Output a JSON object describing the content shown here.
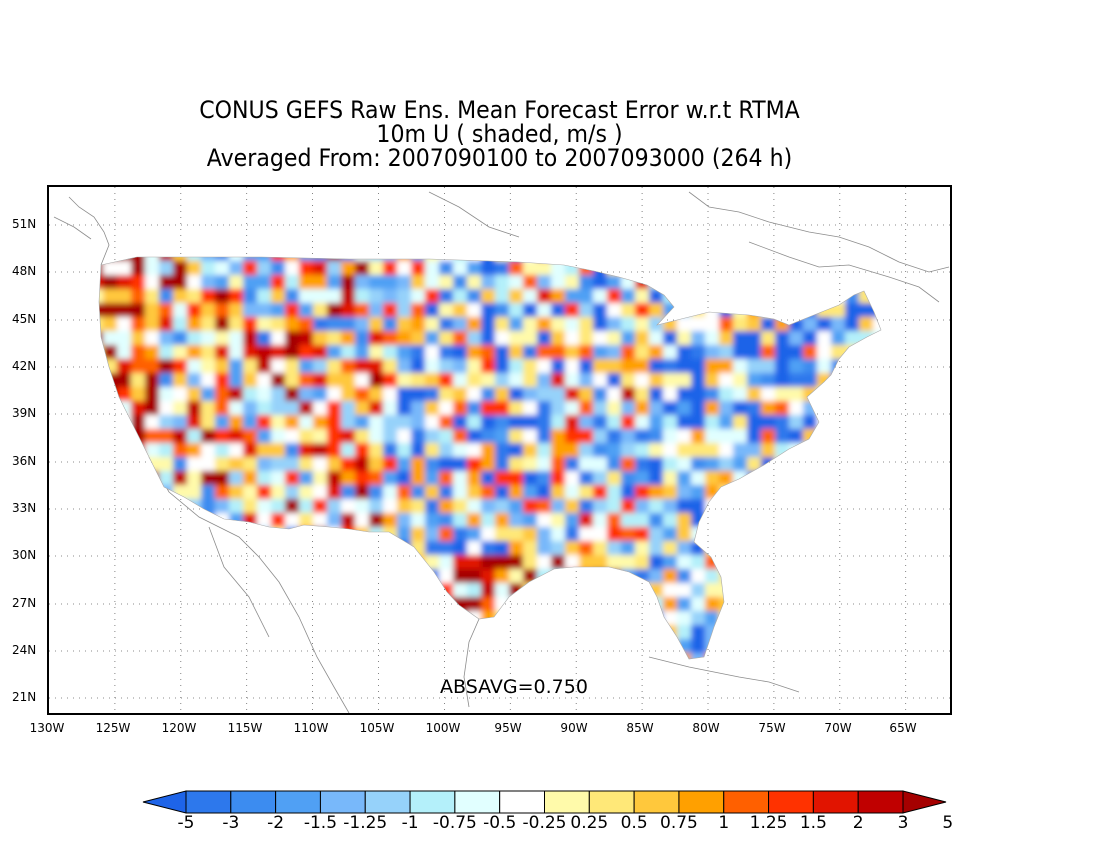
{
  "title": {
    "line1": "CONUS GEFS Raw Ens. Mean Forecast Error w.r.t RTMA",
    "line2": "10m U ( shaded, m/s )",
    "line3": "Averaged From: 2007090100 to 2007093000 (264 h)"
  },
  "annotation": "ABSAVG=0.750",
  "axes": {
    "lat_labels": [
      "51N",
      "48N",
      "45N",
      "42N",
      "39N",
      "36N",
      "33N",
      "30N",
      "27N",
      "24N",
      "21N"
    ],
    "lon_labels": [
      "130W",
      "125W",
      "120W",
      "115W",
      "110W",
      "105W",
      "100W",
      "95W",
      "90W",
      "85W",
      "80W",
      "75W",
      "70W",
      "65W"
    ]
  },
  "colorbar": {
    "levels": [
      "-5",
      "-3",
      "-2",
      "-1.5",
      "-1.25",
      "-1",
      "-0.75",
      "-0.5",
      "-0.25",
      "0.25",
      "0.5",
      "0.75",
      "1",
      "1.25",
      "1.5",
      "2",
      "3",
      "5"
    ],
    "colors": [
      "#1e64e8",
      "#2d78ec",
      "#3c8cf0",
      "#50a0f4",
      "#78b8fa",
      "#96d2fa",
      "#b4f0fa",
      "#e1ffff",
      "#ffffff",
      "#fffaaa",
      "#ffe878",
      "#ffc83c",
      "#ffa000",
      "#ff6000",
      "#ff3200",
      "#e11400",
      "#c00000",
      "#a50000"
    ]
  },
  "field": {
    "type": "shaded map",
    "variable": "10m U",
    "units": "m/s"
  }
}
